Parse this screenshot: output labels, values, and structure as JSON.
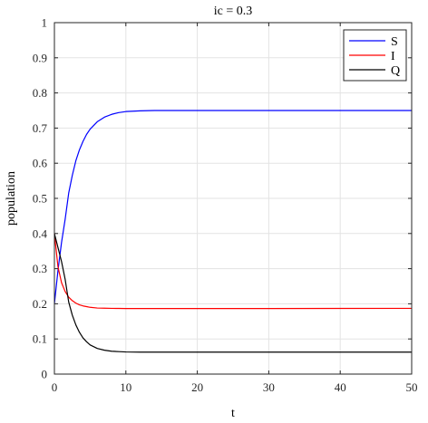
{
  "chart_data": {
    "type": "line",
    "title": "ic = 0.3",
    "xlabel": "t",
    "ylabel": "population",
    "xlim": [
      0,
      50
    ],
    "ylim": [
      0,
      1
    ],
    "xticks": [
      0,
      10,
      20,
      30,
      40,
      50
    ],
    "xtick_labels": [
      "0",
      "10",
      "20",
      "30",
      "40",
      "50"
    ],
    "yticks": [
      0,
      0.1,
      0.2,
      0.3,
      0.4,
      0.5,
      0.6,
      0.7,
      0.8,
      0.9,
      1
    ],
    "ytick_labels": [
      "0",
      "0.1",
      "0.2",
      "0.3",
      "0.4",
      "0.5",
      "0.6",
      "0.7",
      "0.8",
      "0.9",
      "1"
    ],
    "grid": true,
    "legend_position": "top-right",
    "series": [
      {
        "name": "S",
        "color": "#0000ff",
        "x": [
          0,
          0.5,
          1,
          1.5,
          2,
          2.5,
          3,
          3.5,
          4,
          4.5,
          5,
          6,
          7,
          8,
          9,
          10,
          12,
          14,
          16,
          20,
          30,
          40,
          50
        ],
        "y": [
          0.2,
          0.295,
          0.375,
          0.44,
          0.515,
          0.565,
          0.607,
          0.638,
          0.662,
          0.682,
          0.697,
          0.718,
          0.731,
          0.739,
          0.744,
          0.747,
          0.749,
          0.75,
          0.75,
          0.75,
          0.75,
          0.75,
          0.75
        ]
      },
      {
        "name": "I",
        "color": "#ff0000",
        "x": [
          0,
          0.5,
          1,
          1.5,
          2,
          2.5,
          3,
          3.5,
          4,
          4.5,
          5,
          6,
          7,
          8,
          9,
          10,
          12,
          14,
          16,
          20,
          30,
          40,
          50
        ],
        "y": [
          0.4,
          0.305,
          0.26,
          0.235,
          0.219,
          0.209,
          0.202,
          0.197,
          0.194,
          0.192,
          0.19,
          0.188,
          0.1875,
          0.187,
          0.1868,
          0.1866,
          0.1865,
          0.1865,
          0.1865,
          0.1865,
          0.1866,
          0.1868,
          0.187
        ]
      },
      {
        "name": "Q",
        "color": "#000000",
        "x": [
          0,
          0.5,
          1,
          1.5,
          2,
          2.5,
          3,
          3.5,
          4,
          4.5,
          5,
          6,
          7,
          8,
          9,
          10,
          12,
          14,
          16,
          20,
          30,
          40,
          50
        ],
        "y": [
          0.4,
          0.36,
          0.32,
          0.27,
          0.205,
          0.168,
          0.14,
          0.119,
          0.103,
          0.092,
          0.083,
          0.073,
          0.068,
          0.065,
          0.064,
          0.063,
          0.0625,
          0.0625,
          0.0625,
          0.0625,
          0.0625,
          0.0625,
          0.0625
        ]
      }
    ]
  }
}
